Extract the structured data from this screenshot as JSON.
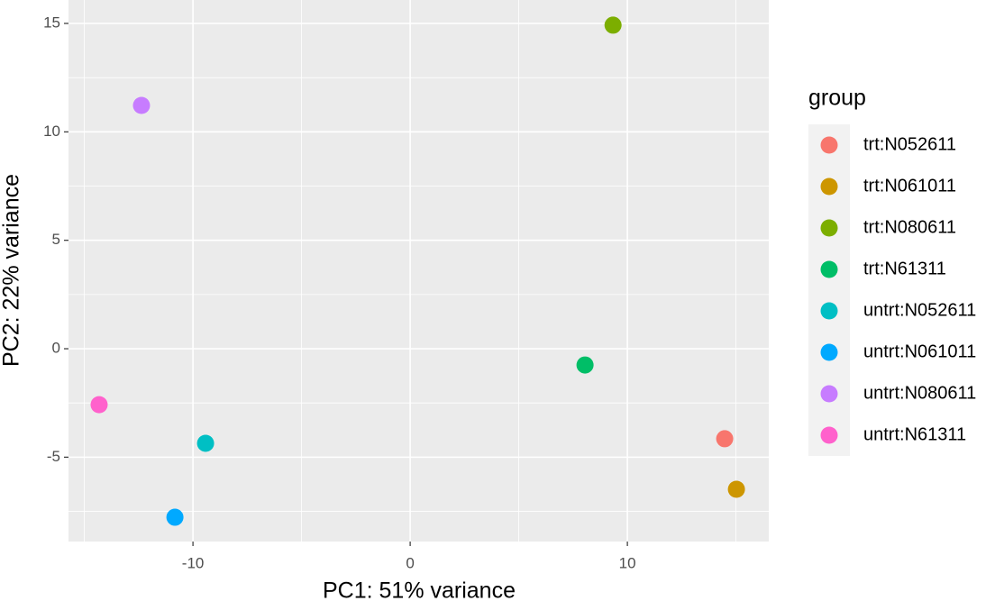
{
  "chart_data": {
    "type": "scatter",
    "xlabel": "PC1: 51% variance",
    "ylabel": "PC2: 22% variance",
    "legend_title": "group",
    "legend_position": "right",
    "grid": true,
    "xlim": [
      -15.73,
      16.51
    ],
    "ylim": [
      -8.89,
      16.08
    ],
    "xticks": [
      -10,
      0,
      10
    ],
    "yticks": [
      -5,
      0,
      5,
      10,
      15
    ],
    "series": [
      {
        "name": "trt:N052611",
        "color": "#F8766D",
        "x": [
          14.48
        ],
        "values": [
          -4.15
        ]
      },
      {
        "name": "trt:N061011",
        "color": "#CD9600",
        "x": [
          15.02
        ],
        "values": [
          -6.48
        ]
      },
      {
        "name": "trt:N080611",
        "color": "#7CAE00",
        "x": [
          9.34
        ],
        "values": [
          14.92
        ]
      },
      {
        "name": "trt:N61311",
        "color": "#00BE67",
        "x": [
          8.05
        ],
        "values": [
          -0.75
        ]
      },
      {
        "name": "untrt:N052611",
        "color": "#00BFC4",
        "x": [
          -9.42
        ],
        "values": [
          -4.36
        ]
      },
      {
        "name": "untrt:N061011",
        "color": "#00A9FF",
        "x": [
          -10.83
        ],
        "values": [
          -7.77
        ]
      },
      {
        "name": "untrt:N080611",
        "color": "#C77CFF",
        "x": [
          -12.37
        ],
        "values": [
          11.22
        ]
      },
      {
        "name": "untrt:N61311",
        "color": "#FF61CC",
        "x": [
          -14.32
        ],
        "values": [
          -2.58
        ]
      }
    ]
  }
}
